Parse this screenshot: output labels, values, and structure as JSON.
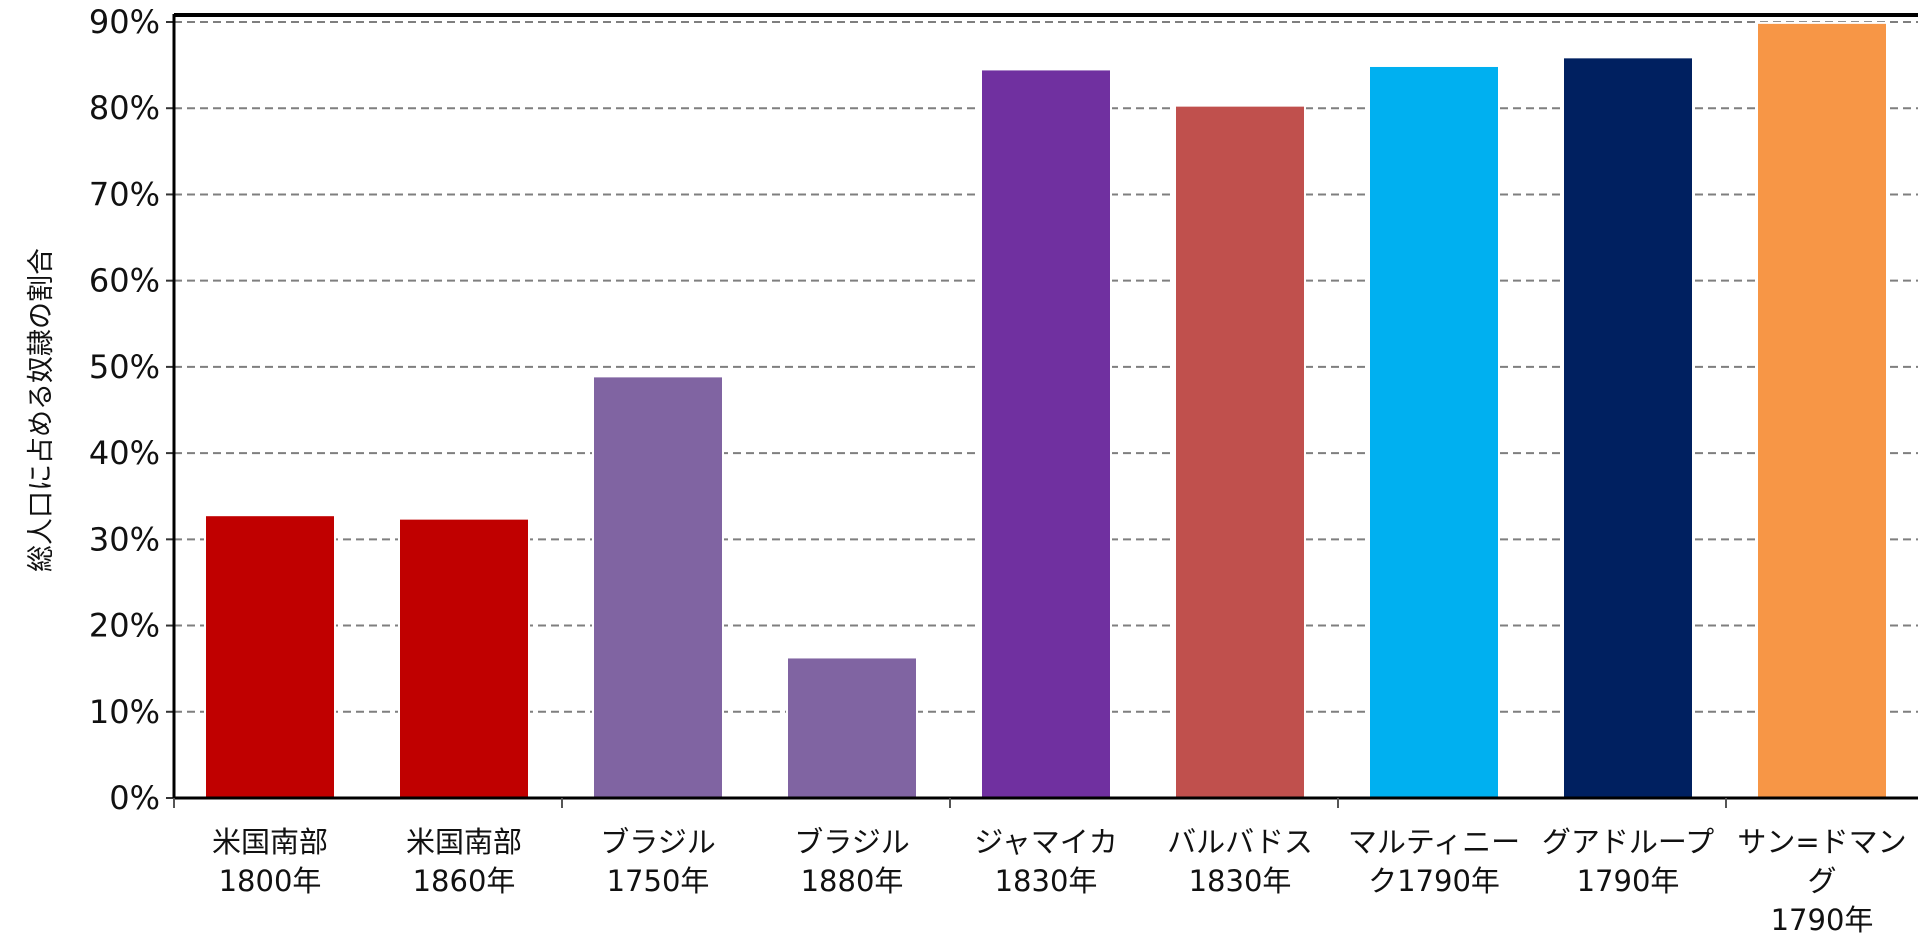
{
  "chart_data": {
    "type": "bar",
    "title": "",
    "xlabel": "",
    "ylabel": "総人口に占める奴隷の割合",
    "ylim": [
      0,
      90
    ],
    "yticks": [
      "0%",
      "10%",
      "20%",
      "30%",
      "40%",
      "50%",
      "60%",
      "70%",
      "80%",
      "90%"
    ],
    "grid": true,
    "legend": "none",
    "categories": [
      [
        "米国南部",
        "1800年"
      ],
      [
        "米国南部",
        "1860年"
      ],
      [
        "ブラジル",
        "1750年"
      ],
      [
        "ブラジル",
        "1880年"
      ],
      [
        "ジャマイカ",
        "1830年"
      ],
      [
        "バルバドス",
        "1830年"
      ],
      [
        "マルティニー",
        "ク1790年"
      ],
      [
        "グアドループ",
        "1790年"
      ],
      [
        "サン=ドマン",
        "グ",
        "1790年"
      ]
    ],
    "values": [
      32.8,
      32.4,
      48.9,
      16.3,
      84.5,
      80.3,
      84.9,
      85.9,
      89.9
    ],
    "colors": [
      "#c00000",
      "#c00000",
      "#8064a2",
      "#8064a2",
      "#7030a0",
      "#c0504d",
      "#00b0f0",
      "#002060",
      "#f79646"
    ]
  }
}
